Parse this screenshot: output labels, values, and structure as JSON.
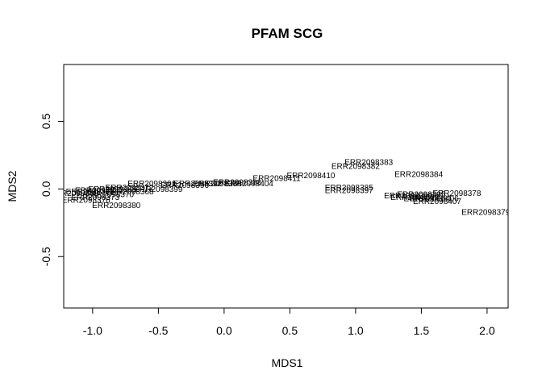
{
  "chart_data": {
    "type": "scatter",
    "title": "PFAM SCG",
    "xlabel": "MDS1",
    "ylabel": "MDS2",
    "xlim": [
      -1.22,
      2.16
    ],
    "ylim": [
      -0.88,
      0.92
    ],
    "grid": false,
    "legend": "none",
    "x_ticks": [
      -1.0,
      -0.5,
      0.0,
      0.5,
      1.0,
      1.5,
      2.0
    ],
    "x_tick_labels": [
      "-1.0",
      "-0.5",
      "0.0",
      "0.5",
      "1.0",
      "1.5",
      "2.0"
    ],
    "y_ticks": [
      -0.5,
      0.0,
      0.5
    ],
    "y_tick_labels": [
      "-0.5",
      "0.0",
      "0.5"
    ],
    "points": [
      {
        "x": 1.1,
        "y": 0.2,
        "label": "ERR2098383"
      },
      {
        "x": 1.0,
        "y": 0.17,
        "label": "ERR2098382"
      },
      {
        "x": 1.48,
        "y": 0.11,
        "label": "ERR2098384"
      },
      {
        "x": 0.66,
        "y": 0.1,
        "label": "ERR2098410"
      },
      {
        "x": 0.4,
        "y": 0.08,
        "label": "ERR2098411"
      },
      {
        "x": 0.19,
        "y": 0.04,
        "label": "ERR2098404"
      },
      {
        "x": 0.1,
        "y": 0.05,
        "label": "ERR2098388"
      },
      {
        "x": -0.05,
        "y": 0.04,
        "label": "ERR2098386"
      },
      {
        "x": -0.2,
        "y": 0.04,
        "label": "ERR2098392"
      },
      {
        "x": -0.3,
        "y": 0.03,
        "label": "ERR2098396"
      },
      {
        "x": -0.55,
        "y": 0.04,
        "label": "ERR2098391"
      },
      {
        "x": -0.72,
        "y": 0.01,
        "label": "ERR2098372"
      },
      {
        "x": -0.5,
        "y": 0.0,
        "label": "ERR2098399"
      },
      {
        "x": -0.85,
        "y": 0.0,
        "label": "ERR2098365"
      },
      {
        "x": -0.95,
        "y": -0.01,
        "label": "ERR2098387"
      },
      {
        "x": -1.02,
        "y": -0.02,
        "label": "ERR2098375"
      },
      {
        "x": -0.87,
        "y": -0.04,
        "label": "ERR2098370"
      },
      {
        "x": -0.98,
        "y": -0.06,
        "label": "ERR2098373"
      },
      {
        "x": -1.05,
        "y": -0.08,
        "label": "ERR2098376"
      },
      {
        "x": -0.82,
        "y": -0.12,
        "label": "ERR2098380"
      },
      {
        "x": -0.72,
        "y": -0.02,
        "label": "ERR2098368"
      },
      {
        "x": -1.14,
        "y": -0.03,
        "label": "ERR2098369"
      },
      {
        "x": 0.95,
        "y": 0.01,
        "label": "ERR2098385"
      },
      {
        "x": 0.95,
        "y": -0.01,
        "label": "ERR2098397"
      },
      {
        "x": 1.77,
        "y": -0.03,
        "label": "ERR2098378"
      },
      {
        "x": 1.5,
        "y": -0.04,
        "label": "ERR2098395"
      },
      {
        "x": 1.4,
        "y": -0.05,
        "label": "ERR2098390"
      },
      {
        "x": 1.45,
        "y": -0.06,
        "label": "ERR2098393"
      },
      {
        "x": 1.55,
        "y": -0.07,
        "label": "ERR2098381"
      },
      {
        "x": 1.6,
        "y": -0.07,
        "label": "ERR2098406"
      },
      {
        "x": 1.62,
        "y": -0.09,
        "label": "ERR2098407"
      },
      {
        "x": 1.99,
        "y": -0.17,
        "label": "ERR2098379"
      }
    ]
  }
}
